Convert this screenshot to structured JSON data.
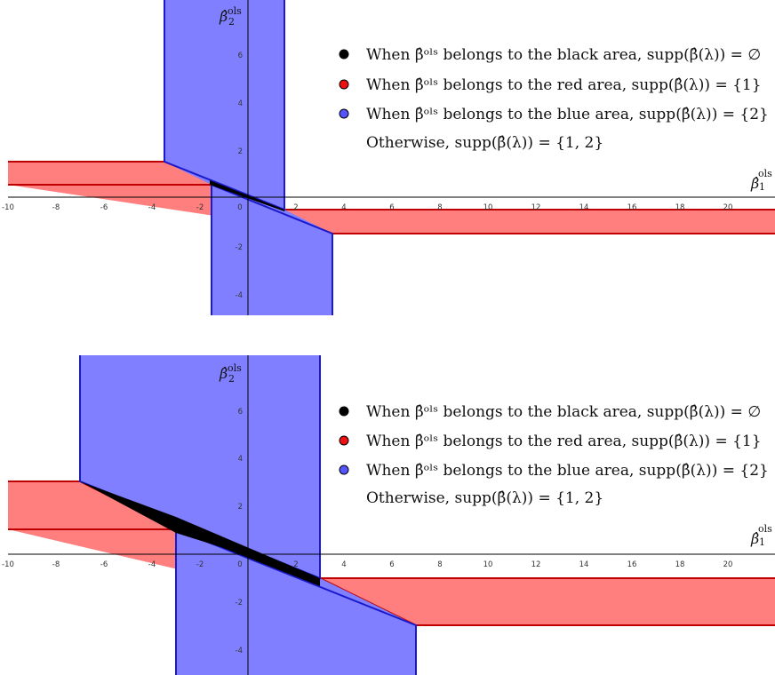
{
  "legend": {
    "black": "When β̂ᵒˡˢ belongs to the black area, supp(β̂(λ)) = ∅",
    "red": "When β̂ᵒˡˢ belongs to the red area, supp(β̂(λ)) = {1}",
    "blue": "When β̂ᵒˡˢ belongs to the blue area, supp(β̂(λ)) = {2}",
    "other": "Otherwise, supp(β̂(λ)) = {1, 2}"
  },
  "axes": {
    "x_main": "β̂",
    "x_sup": "ols",
    "x_sub": "1",
    "y_main": "β̂",
    "y_sup": "ols",
    "y_sub": "2"
  },
  "colors": {
    "black": "#000000",
    "red_fill": "#ff7f7f",
    "red_edge": "#c00000",
    "blue_fill": "#7f7fff",
    "blue_edge": "#1a1acc"
  },
  "panels": [
    {
      "x_ticks": [
        "-10",
        "-8",
        "-6",
        "-4",
        "-2",
        "0",
        "2",
        "4",
        "6",
        "8",
        "10",
        "12",
        "14",
        "16",
        "18",
        "20"
      ],
      "y_ticks": [
        "6",
        "4",
        "2",
        "-2",
        "-4"
      ]
    },
    {
      "x_ticks": [
        "-10",
        "-8",
        "-6",
        "-4",
        "-2",
        "0",
        "2",
        "4",
        "6",
        "8",
        "10",
        "12",
        "14",
        "16",
        "18",
        "20"
      ],
      "y_ticks": [
        "6",
        "4",
        "2",
        "-2",
        "-4"
      ]
    }
  ]
}
